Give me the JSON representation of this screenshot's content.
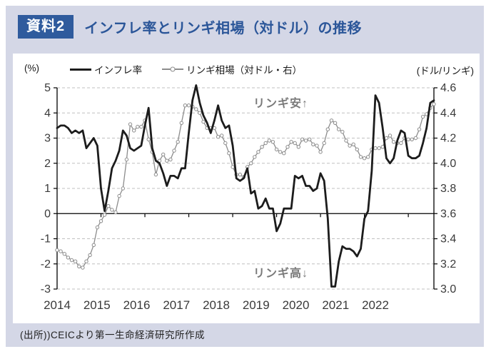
{
  "header": {
    "badge": "資料2",
    "title": "インフレ率とリンギ相場（対ドル）の推移"
  },
  "legend": {
    "series1": "インフレ率",
    "series2": "リンギ相場（対ドル・右）"
  },
  "axis_units": {
    "left": "(%)",
    "right": "(ドル/リンギ)"
  },
  "annotations": {
    "weak": "リンギ安↑",
    "strong": "リンギ高↓"
  },
  "footer": {
    "source": "(出所))CEICより第一生命経済研究所作成"
  },
  "colors": {
    "frame_bg": "#d4d7e6",
    "badge_bg": "#2f5b9d",
    "title_text": "#2b5699",
    "inflation_line": "#1c1c1c",
    "ringgit_line": "#8c8c8c",
    "gridline": "#c0c0c0",
    "axis": "#000000",
    "tick_label": "#3a3a3a",
    "annotation": "#7a7a7a"
  },
  "chart_data": {
    "type": "line",
    "title": "インフレ率とリンギ相場（対ドル）の推移",
    "x_frequency": "monthly",
    "x_start": "2014-01",
    "x_end": "2022-08",
    "x_tick_years": [
      "2014",
      "2015",
      "2016",
      "2017",
      "2018",
      "2019",
      "2020",
      "2021",
      "2022"
    ],
    "left_axis": {
      "unit": "(%)",
      "range": [
        -3,
        5
      ],
      "ticks": [
        "5",
        "4",
        "3",
        "2",
        "1",
        "0",
        "-1",
        "-2",
        "-3"
      ],
      "tick_values": [
        5,
        4,
        3,
        2,
        1,
        0,
        -1,
        -2,
        -3
      ]
    },
    "right_axis": {
      "unit": "(ドル/リンギ)",
      "range": [
        3.0,
        4.6
      ],
      "ticks": [
        "4.6",
        "4.4",
        "4.2",
        "4.0",
        "3.8",
        "3.6",
        "3.4",
        "3.2",
        "3.0"
      ],
      "tick_values": [
        4.6,
        4.4,
        4.2,
        4.0,
        3.8,
        3.6,
        3.4,
        3.2,
        3.0
      ]
    },
    "grid": "dashed-horizontal",
    "legend_position": "top",
    "series": [
      {
        "name": "インフレ率",
        "axis": "left",
        "style": "thick-solid",
        "color": "#1c1c1c",
        "values": [
          3.4,
          3.5,
          3.5,
          3.4,
          3.2,
          3.3,
          3.2,
          3.3,
          2.6,
          2.8,
          3.0,
          2.7,
          1.0,
          0.1,
          0.9,
          1.8,
          2.1,
          2.5,
          3.3,
          3.1,
          2.6,
          2.5,
          2.6,
          2.7,
          3.5,
          4.2,
          2.6,
          2.1,
          2.0,
          1.6,
          1.1,
          1.5,
          1.5,
          1.4,
          1.8,
          1.8,
          3.2,
          4.5,
          5.1,
          4.4,
          3.9,
          3.6,
          3.2,
          3.7,
          4.3,
          3.7,
          3.4,
          3.5,
          2.7,
          1.4,
          1.3,
          1.4,
          1.8,
          0.8,
          0.9,
          0.2,
          0.3,
          0.6,
          0.2,
          0.2,
          -0.7,
          -0.4,
          0.2,
          0.2,
          0.2,
          1.5,
          1.4,
          1.5,
          1.1,
          1.1,
          0.9,
          1.0,
          1.6,
          1.3,
          -0.2,
          -2.9,
          -2.9,
          -1.9,
          -1.3,
          -1.4,
          -1.4,
          -1.5,
          -1.7,
          -1.4,
          -0.2,
          0.1,
          1.7,
          4.7,
          4.4,
          3.4,
          2.2,
          2.0,
          2.2,
          2.9,
          3.3,
          3.2,
          2.3,
          2.2,
          2.2,
          2.3,
          2.8,
          3.4,
          4.4,
          4.5
        ]
      },
      {
        "name": "リンギ相場（対ドル・右）",
        "axis": "right",
        "style": "thin-circle-markers",
        "color": "#8c8c8c",
        "values": [
          3.31,
          3.3,
          3.28,
          3.25,
          3.23,
          3.22,
          3.18,
          3.17,
          3.22,
          3.27,
          3.35,
          3.49,
          3.54,
          3.59,
          3.66,
          3.63,
          3.61,
          3.74,
          3.8,
          4.03,
          4.31,
          4.26,
          4.29,
          4.29,
          4.34,
          4.19,
          4.09,
          3.91,
          4.02,
          4.07,
          4.02,
          4.03,
          4.1,
          4.17,
          4.32,
          4.46,
          4.46,
          4.45,
          4.43,
          4.4,
          4.33,
          4.28,
          4.28,
          4.28,
          4.21,
          4.22,
          4.16,
          4.08,
          3.97,
          3.91,
          3.91,
          3.89,
          3.97,
          4.0,
          4.05,
          4.09,
          4.13,
          4.16,
          4.18,
          4.17,
          4.11,
          4.09,
          4.08,
          4.13,
          4.17,
          4.16,
          4.13,
          4.19,
          4.18,
          4.19,
          4.15,
          4.14,
          4.09,
          4.16,
          4.27,
          4.34,
          4.32,
          4.27,
          4.25,
          4.18,
          4.14,
          4.15,
          4.11,
          4.05,
          4.04,
          4.05,
          4.11,
          4.12,
          4.12,
          4.13,
          4.2,
          4.22,
          4.17,
          4.16,
          4.16,
          4.2,
          4.19,
          4.19,
          4.2,
          4.27,
          4.37,
          4.39,
          4.44,
          4.47
        ]
      }
    ],
    "annotations": [
      {
        "text": "リンギ安↑",
        "position": "upper-middle"
      },
      {
        "text": "リンギ高↓",
        "position": "lower-middle"
      }
    ]
  }
}
